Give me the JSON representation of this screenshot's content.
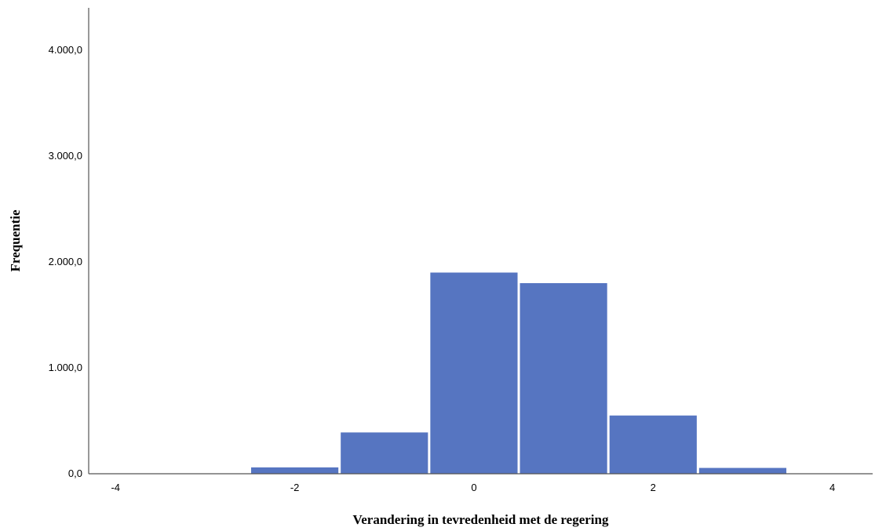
{
  "chart_data": {
    "type": "bar",
    "title": "",
    "xlabel": "Verandering in tevredenheid met de regering",
    "ylabel": "Frequentie",
    "x_ticks": [
      -4,
      -2,
      0,
      2,
      4
    ],
    "x_tick_labels": [
      "-4",
      "-2",
      "0",
      "2",
      "4"
    ],
    "xlim": [
      -4.3,
      4.45
    ],
    "y_ticks": [
      0,
      1000,
      2000,
      3000,
      4000
    ],
    "y_tick_labels": [
      "0,0",
      "1.000,0",
      "2.000,0",
      "3.000,0",
      "4.000,0"
    ],
    "ylim": [
      0,
      4400
    ],
    "grid": false,
    "bar_width": 1,
    "bars": [
      {
        "x": -4,
        "value": 0
      },
      {
        "x": -3,
        "value": 0
      },
      {
        "x": -2,
        "value": 60
      },
      {
        "x": -1,
        "value": 390
      },
      {
        "x": 0,
        "value": 1900
      },
      {
        "x": 1,
        "value": 1800
      },
      {
        "x": 2,
        "value": 550
      },
      {
        "x": 3,
        "value": 55
      },
      {
        "x": 4,
        "value": 0
      }
    ],
    "colors": {
      "bar": "#5675c1",
      "axis": "#555555"
    }
  }
}
